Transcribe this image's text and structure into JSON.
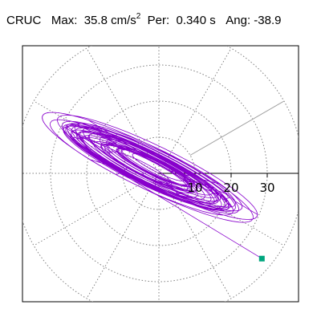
{
  "header": {
    "station": "CRUC",
    "max_label": "Max:",
    "max_value": "35.8",
    "max_unit": "cm/s",
    "max_unit_exp": "2",
    "per_label": "Per:",
    "per_value": "0.340 s",
    "ang_label": "Ang:",
    "ang_value": "-38.9"
  },
  "chart_data": {
    "type": "polar-orbit",
    "radial_ticks": [
      "10",
      "20",
      "30"
    ],
    "radial_tick_values": [
      10,
      20,
      30
    ],
    "rings": [
      10,
      20,
      30,
      40
    ],
    "spokes_deg": [
      0,
      30,
      60,
      90,
      120,
      150,
      180,
      210,
      240,
      270,
      300,
      330
    ],
    "grid": true,
    "max_amplitude": 35.8,
    "direction_deg": -38.9,
    "colors": {
      "trace": "#8800cc",
      "marker": "#00a67e",
      "grid": "#808080",
      "axis": "#000000"
    },
    "endpoint": [
      28.4,
      -23.5
    ]
  }
}
